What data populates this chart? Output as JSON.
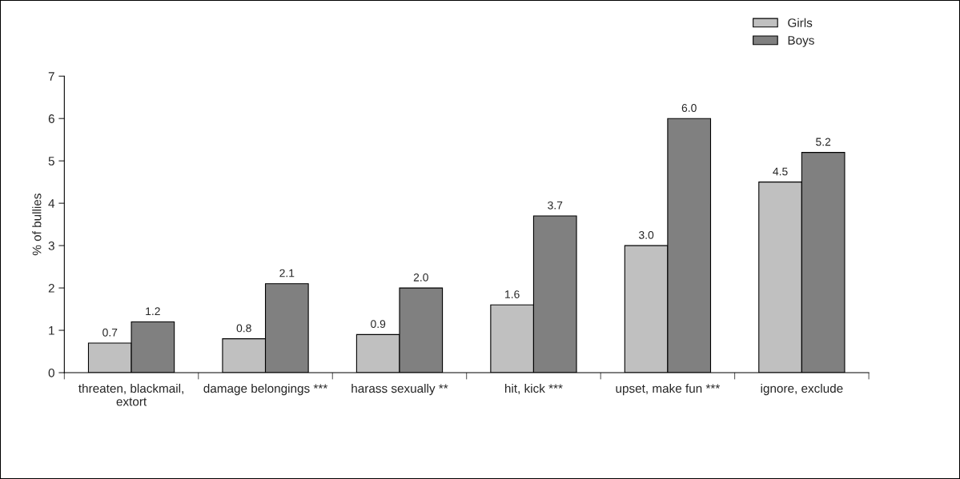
{
  "chart_data": {
    "type": "bar",
    "ylabel": "% of bullies",
    "categories": [
      "threaten, blackmail, extort",
      "damage belongings ***",
      "harass sexually **",
      "hit, kick ***",
      "upset, make fun ***",
      "ignore, exclude"
    ],
    "series": [
      {
        "name": "Girls",
        "color": "#c0c0c0",
        "values": [
          0.7,
          0.8,
          0.9,
          1.6,
          3.0,
          4.5
        ],
        "value_labels": [
          "0.7",
          "0.8",
          "0.9",
          "1.6",
          "3.0",
          "4.5"
        ]
      },
      {
        "name": "Boys",
        "color": "#808080",
        "values": [
          1.2,
          2.1,
          2.0,
          3.7,
          6.0,
          5.2
        ],
        "value_labels": [
          "1.2",
          "2.1",
          "2.0",
          "3.7",
          "6.0",
          "5.2"
        ]
      }
    ],
    "ylim": [
      0,
      7
    ],
    "yticks": [
      0,
      1,
      2,
      3,
      4,
      5,
      6,
      7
    ],
    "legend": "top right",
    "grid": false
  }
}
